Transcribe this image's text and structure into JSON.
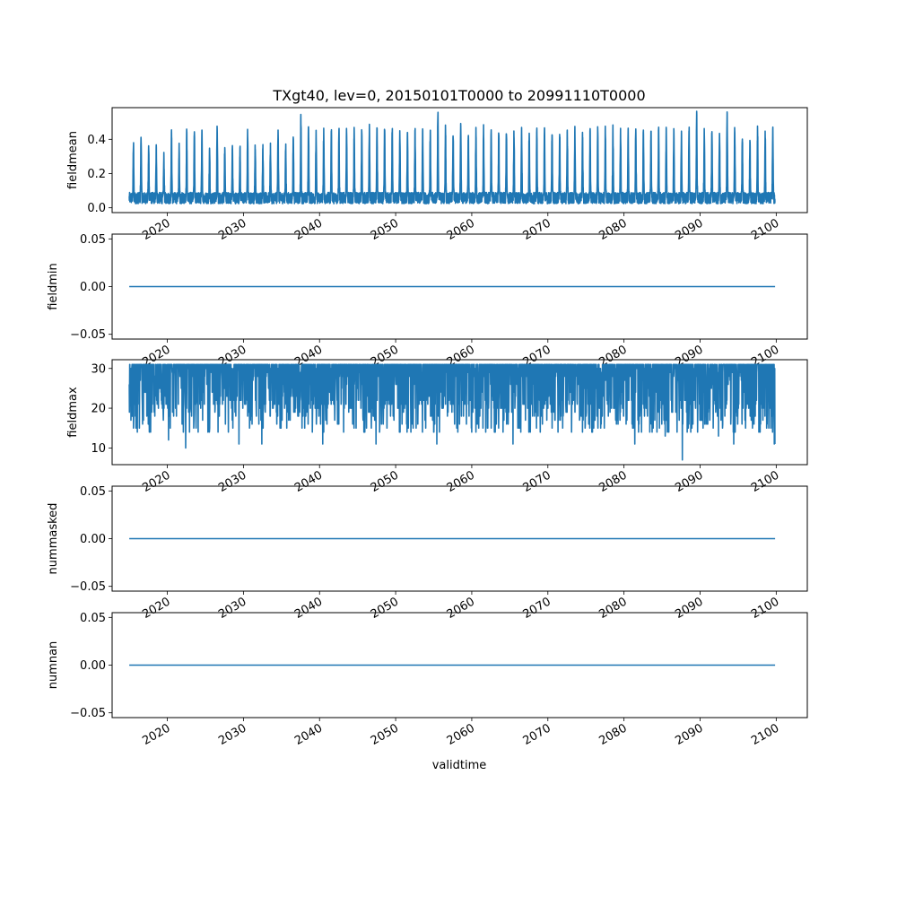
{
  "chart_data": {
    "type": "line",
    "title": "TXgt40, lev=0, 20150101T0000 to 20991110T0000",
    "xlabel": "validtime",
    "x_range": [
      "2015-01-01",
      "2099-11-10"
    ],
    "xlim": [
      "2012-10-01",
      "2104-02-01"
    ],
    "x_ticks": [
      "2020",
      "2030",
      "2040",
      "2050",
      "2060",
      "2070",
      "2080",
      "2090",
      "2100"
    ],
    "color": "#1f77b4",
    "grid": false,
    "panels": [
      {
        "name": "fieldmean",
        "ylabel": "fieldmean",
        "ylim": [
          -0.028,
          0.585
        ],
        "yticks": [
          "0.0",
          "0.2",
          "0.4"
        ],
        "ytick_values": [
          0,
          0.2,
          0.4
        ],
        "series": {
          "kind": "seasonal",
          "baseline": 0.06,
          "min": 0.0,
          "peaks": [
            0.37,
            0.42,
            0.35,
            0.35,
            0.3,
            0.44,
            0.35,
            0.44,
            0.45,
            0.44,
            0.34,
            0.48,
            0.35,
            0.35,
            0.35,
            0.46,
            0.36,
            0.36,
            0.36,
            0.47,
            0.37,
            0.44,
            0.53,
            0.5,
            0.44,
            0.45,
            0.45,
            0.46,
            0.46,
            0.46,
            0.46,
            0.46,
            0.47,
            0.47,
            0.46,
            0.45,
            0.45,
            0.45,
            0.47,
            0.45,
            0.56,
            0.47,
            0.45,
            0.51,
            0.45,
            0.45,
            0.46,
            0.45,
            0.45,
            0.45,
            0.45,
            0.45,
            0.45,
            0.45,
            0.47,
            0.45,
            0.45,
            0.45,
            0.46,
            0.45,
            0.45,
            0.46,
            0.45,
            0.46,
            0.45,
            0.45,
            0.46,
            0.45,
            0.45,
            0.46,
            0.45,
            0.45,
            0.45,
            0.46,
            0.54,
            0.45,
            0.45,
            0.45,
            0.55,
            0.47,
            0.42,
            0.38,
            0.45,
            0.44,
            0.46
          ],
          "last_value": 0.03
        }
      },
      {
        "name": "fieldmin",
        "ylabel": "fieldmin",
        "ylim": [
          -0.055,
          0.055
        ],
        "yticks": [
          "−0.05",
          "0.00",
          "0.05"
        ],
        "ytick_values": [
          -0.05,
          0,
          0.05
        ],
        "series": {
          "kind": "constant",
          "value": 0.0
        }
      },
      {
        "name": "fieldmax",
        "ylabel": "fieldmax",
        "ylim": [
          5.8,
          32.2
        ],
        "yticks": [
          "10",
          "20",
          "30"
        ],
        "ytick_values": [
          10,
          20,
          30
        ],
        "series": {
          "kind": "noisy",
          "top": 31,
          "min": 7,
          "start_value": 26,
          "end_value": 11,
          "notable_lows": [
            [
              "2020-03-01",
              12
            ],
            [
              "2022-06-01",
              10
            ],
            [
              "2025-05-01",
              14
            ],
            [
              "2029-06-01",
              11
            ],
            [
              "2032-06-01",
              11
            ],
            [
              "2040-06-01",
              11
            ],
            [
              "2047-06-01",
              11
            ],
            [
              "2055-06-01",
              11
            ],
            [
              "2065-06-01",
              11
            ],
            [
              "2081-06-01",
              11
            ],
            [
              "2085-06-01",
              13
            ],
            [
              "2087-09-01",
              7
            ],
            [
              "2092-06-01",
              13
            ],
            [
              "2094-06-01",
              11
            ],
            [
              "2099-10-01",
              11
            ]
          ]
        }
      },
      {
        "name": "nummasked",
        "ylabel": "nummasked",
        "ylim": [
          -0.055,
          0.055
        ],
        "yticks": [
          "−0.05",
          "0.00",
          "0.05"
        ],
        "ytick_values": [
          -0.05,
          0,
          0.05
        ],
        "series": {
          "kind": "constant",
          "value": 0.0
        }
      },
      {
        "name": "numnan",
        "ylabel": "numnan",
        "ylim": [
          -0.055,
          0.055
        ],
        "yticks": [
          "−0.05",
          "0.00",
          "0.05"
        ],
        "ytick_values": [
          -0.05,
          0,
          0.05
        ],
        "series": {
          "kind": "constant",
          "value": 0.0
        }
      }
    ]
  }
}
